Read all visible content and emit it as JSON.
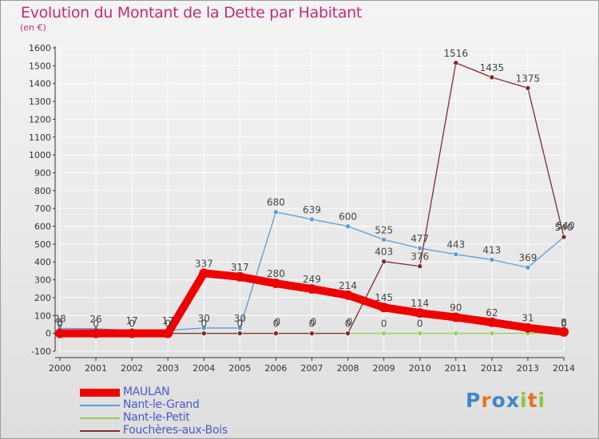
{
  "title": "Evolution du Montant de la Dette par Habitant",
  "subtitle": "(en €)",
  "logo": {
    "text": "Proxiti",
    "letter_colors": [
      "#3e86c7",
      "#e8731a",
      "#3e86c7",
      "#3e86c7",
      "#8cc63f",
      "#e8731a",
      "#8cc63f"
    ]
  },
  "colors": {
    "title": "#c42a7e",
    "legend_text": "#4a5ac8",
    "grid": "#ffffff",
    "axis": "#333333",
    "label": "#333333"
  },
  "chart_data": {
    "type": "line",
    "title": "Evolution du Montant de la Dette par Habitant",
    "subtitle": "(en €)",
    "categories": [
      "2000",
      "2001",
      "2002",
      "2003",
      "2004",
      "2005",
      "2006",
      "2007",
      "2008",
      "2009",
      "2010",
      "2011",
      "2012",
      "2013",
      "2014"
    ],
    "ylim": [
      -100,
      1600
    ],
    "yticks": [
      -100,
      0,
      100,
      200,
      300,
      400,
      500,
      600,
      700,
      800,
      900,
      1000,
      1100,
      1200,
      1300,
      1400,
      1500,
      1600
    ],
    "grid": true,
    "legend_position": "bottom-left",
    "series": [
      {
        "name": "MAULAN",
        "color": "#ee0000",
        "width": 10,
        "values": [
          0,
          0,
          0,
          0,
          337,
          317,
          280,
          249,
          214,
          145,
          114,
          90,
          62,
          31,
          8
        ]
      },
      {
        "name": "Nant-le-Grand",
        "color": "#5b9bd5",
        "width": 1.3,
        "values": [
          28,
          26,
          17,
          17,
          30,
          30,
          680,
          639,
          600,
          525,
          477,
          443,
          413,
          369,
          540
        ]
      },
      {
        "name": "Nant-le-Petit",
        "color": "#92d050",
        "width": 1.3,
        "values": [
          0,
          0,
          0,
          0,
          0,
          0,
          0,
          0,
          0,
          0,
          0,
          0,
          0,
          0,
          0
        ]
      },
      {
        "name": "Fouchères-aux-Bois",
        "color": "#7b2c2c",
        "width": 1.3,
        "values": [
          8,
          0,
          0,
          0,
          0,
          0,
          0,
          0,
          0,
          403,
          376,
          1516,
          1435,
          1375,
          540
        ]
      }
    ],
    "data_labels": [
      {
        "x": "2000",
        "text": "28"
      },
      {
        "x": "2001",
        "text": "26"
      },
      {
        "x": "2002",
        "text": "17"
      },
      {
        "x": "2003",
        "text": "17"
      },
      {
        "x": "2000",
        "text": "8"
      },
      {
        "x": "2000",
        "text": "0"
      },
      {
        "x": "2001",
        "text": "0"
      },
      {
        "x": "2002",
        "text": "0"
      },
      {
        "x": "2003",
        "text": "0"
      },
      {
        "x": "2004",
        "text": "337"
      },
      {
        "x": "2005",
        "text": "317"
      },
      {
        "x": "2006",
        "text": "280"
      },
      {
        "x": "2007",
        "text": "249"
      },
      {
        "x": "2008",
        "text": "214"
      },
      {
        "x": "2009",
        "text": "145"
      },
      {
        "x": "2010",
        "text": "114"
      },
      {
        "x": "2011",
        "text": "90"
      },
      {
        "x": "2012",
        "text": "62"
      },
      {
        "x": "2013",
        "text": "31"
      },
      {
        "x": "2014",
        "text": "8"
      },
      {
        "x": "2004",
        "text": "30"
      },
      {
        "x": "2005",
        "text": "30"
      },
      {
        "x": "2004",
        "text": "0"
      },
      {
        "x": "2005",
        "text": "0"
      },
      {
        "x": "2006",
        "text": "0"
      },
      {
        "x": "2007",
        "text": "0"
      },
      {
        "x": "2008",
        "text": "0"
      },
      {
        "x": "2006",
        "text": "0"
      },
      {
        "x": "2007",
        "text": "0"
      },
      {
        "x": "2008",
        "text": "0"
      },
      {
        "x": "2009",
        "text": "0"
      },
      {
        "x": "2010",
        "text": "0"
      },
      {
        "x": "2014",
        "text": "0"
      },
      {
        "x": "2006",
        "text": "680"
      },
      {
        "x": "2007",
        "text": "639"
      },
      {
        "x": "2008",
        "text": "600"
      },
      {
        "x": "2009",
        "text": "525"
      },
      {
        "x": "2010",
        "text": "477"
      },
      {
        "x": "2011",
        "text": "443"
      },
      {
        "x": "2012",
        "text": "413"
      },
      {
        "x": "2013",
        "text": "369"
      },
      {
        "x": "2014",
        "text": "540"
      },
      {
        "x": "2014",
        "text": "540"
      },
      {
        "x": "2009",
        "text": "403"
      },
      {
        "x": "2010",
        "text": "376"
      },
      {
        "x": "2011",
        "text": "1516"
      },
      {
        "x": "2012",
        "text": "1435"
      },
      {
        "x": "2013",
        "text": "1375"
      }
    ]
  }
}
